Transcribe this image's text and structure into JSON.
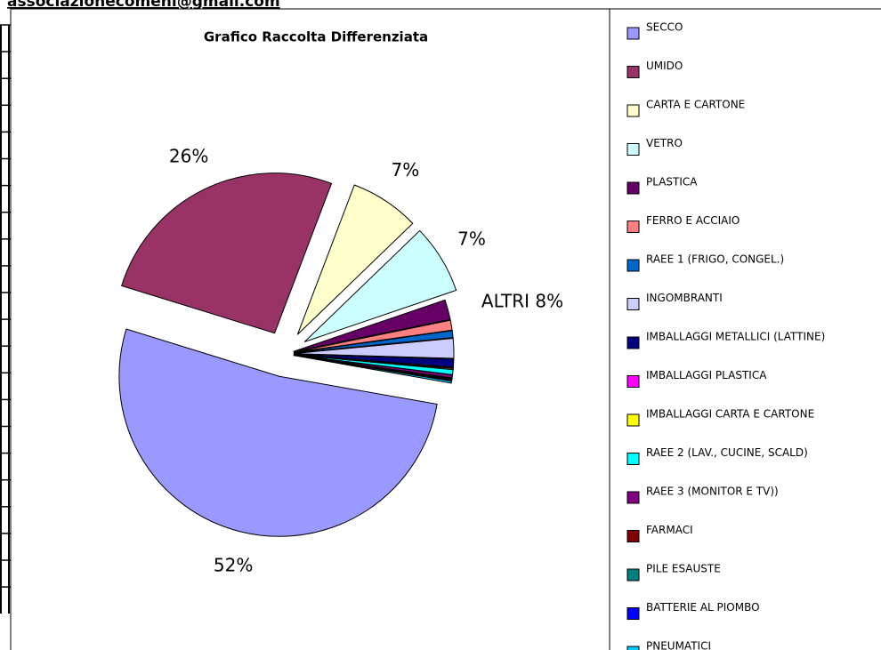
{
  "header_text": "associazionecomeni@gmail.com",
  "chart_data": {
    "type": "pie",
    "title": "Grafico Raccolta Differenziata",
    "categories": [
      "SECCO",
      "UMIDO",
      "CARTA E CARTONE",
      "VETRO",
      "PLASTICA",
      "FERRO E ACCIAIO",
      "RAEE 1 (FRIGO, CONGEL.)",
      "INGOMBRANTI",
      "IMBALLAGGI METALLICI (LATTINE)",
      "IMBALLAGGI PLASTICA",
      "IMBALLAGGI CARTA E CARTONE",
      "RAEE 2 (LAV., CUCINE, SCALD)",
      "RAEE 3 (MONITOR E TV))",
      "FARMACI",
      "PILE ESAUSTE",
      "BATTERIE AL PIOMBO",
      "PNEUMATICI"
    ],
    "values": [
      52,
      26,
      7,
      7,
      2,
      1,
      0.7,
      2,
      0.8,
      0.1,
      0.1,
      0.5,
      0.3,
      0.1,
      0.1,
      0.1,
      0.2
    ],
    "value_labels": [
      "52%",
      "26%",
      "7%",
      "7%",
      null,
      null,
      null,
      null,
      null,
      null,
      null,
      null,
      null,
      null,
      null,
      null,
      null
    ],
    "colors": [
      "#9999ff",
      "#993366",
      "#ffffcc",
      "#ccffff",
      "#660066",
      "#ff8080",
      "#0066cc",
      "#ccccff",
      "#000080",
      "#ff00ff",
      "#ffff00",
      "#00ffff",
      "#800080",
      "#800000",
      "#008080",
      "#0000ff",
      "#00ccff"
    ],
    "annotation": "ALTRI 8%",
    "legend": "right"
  }
}
